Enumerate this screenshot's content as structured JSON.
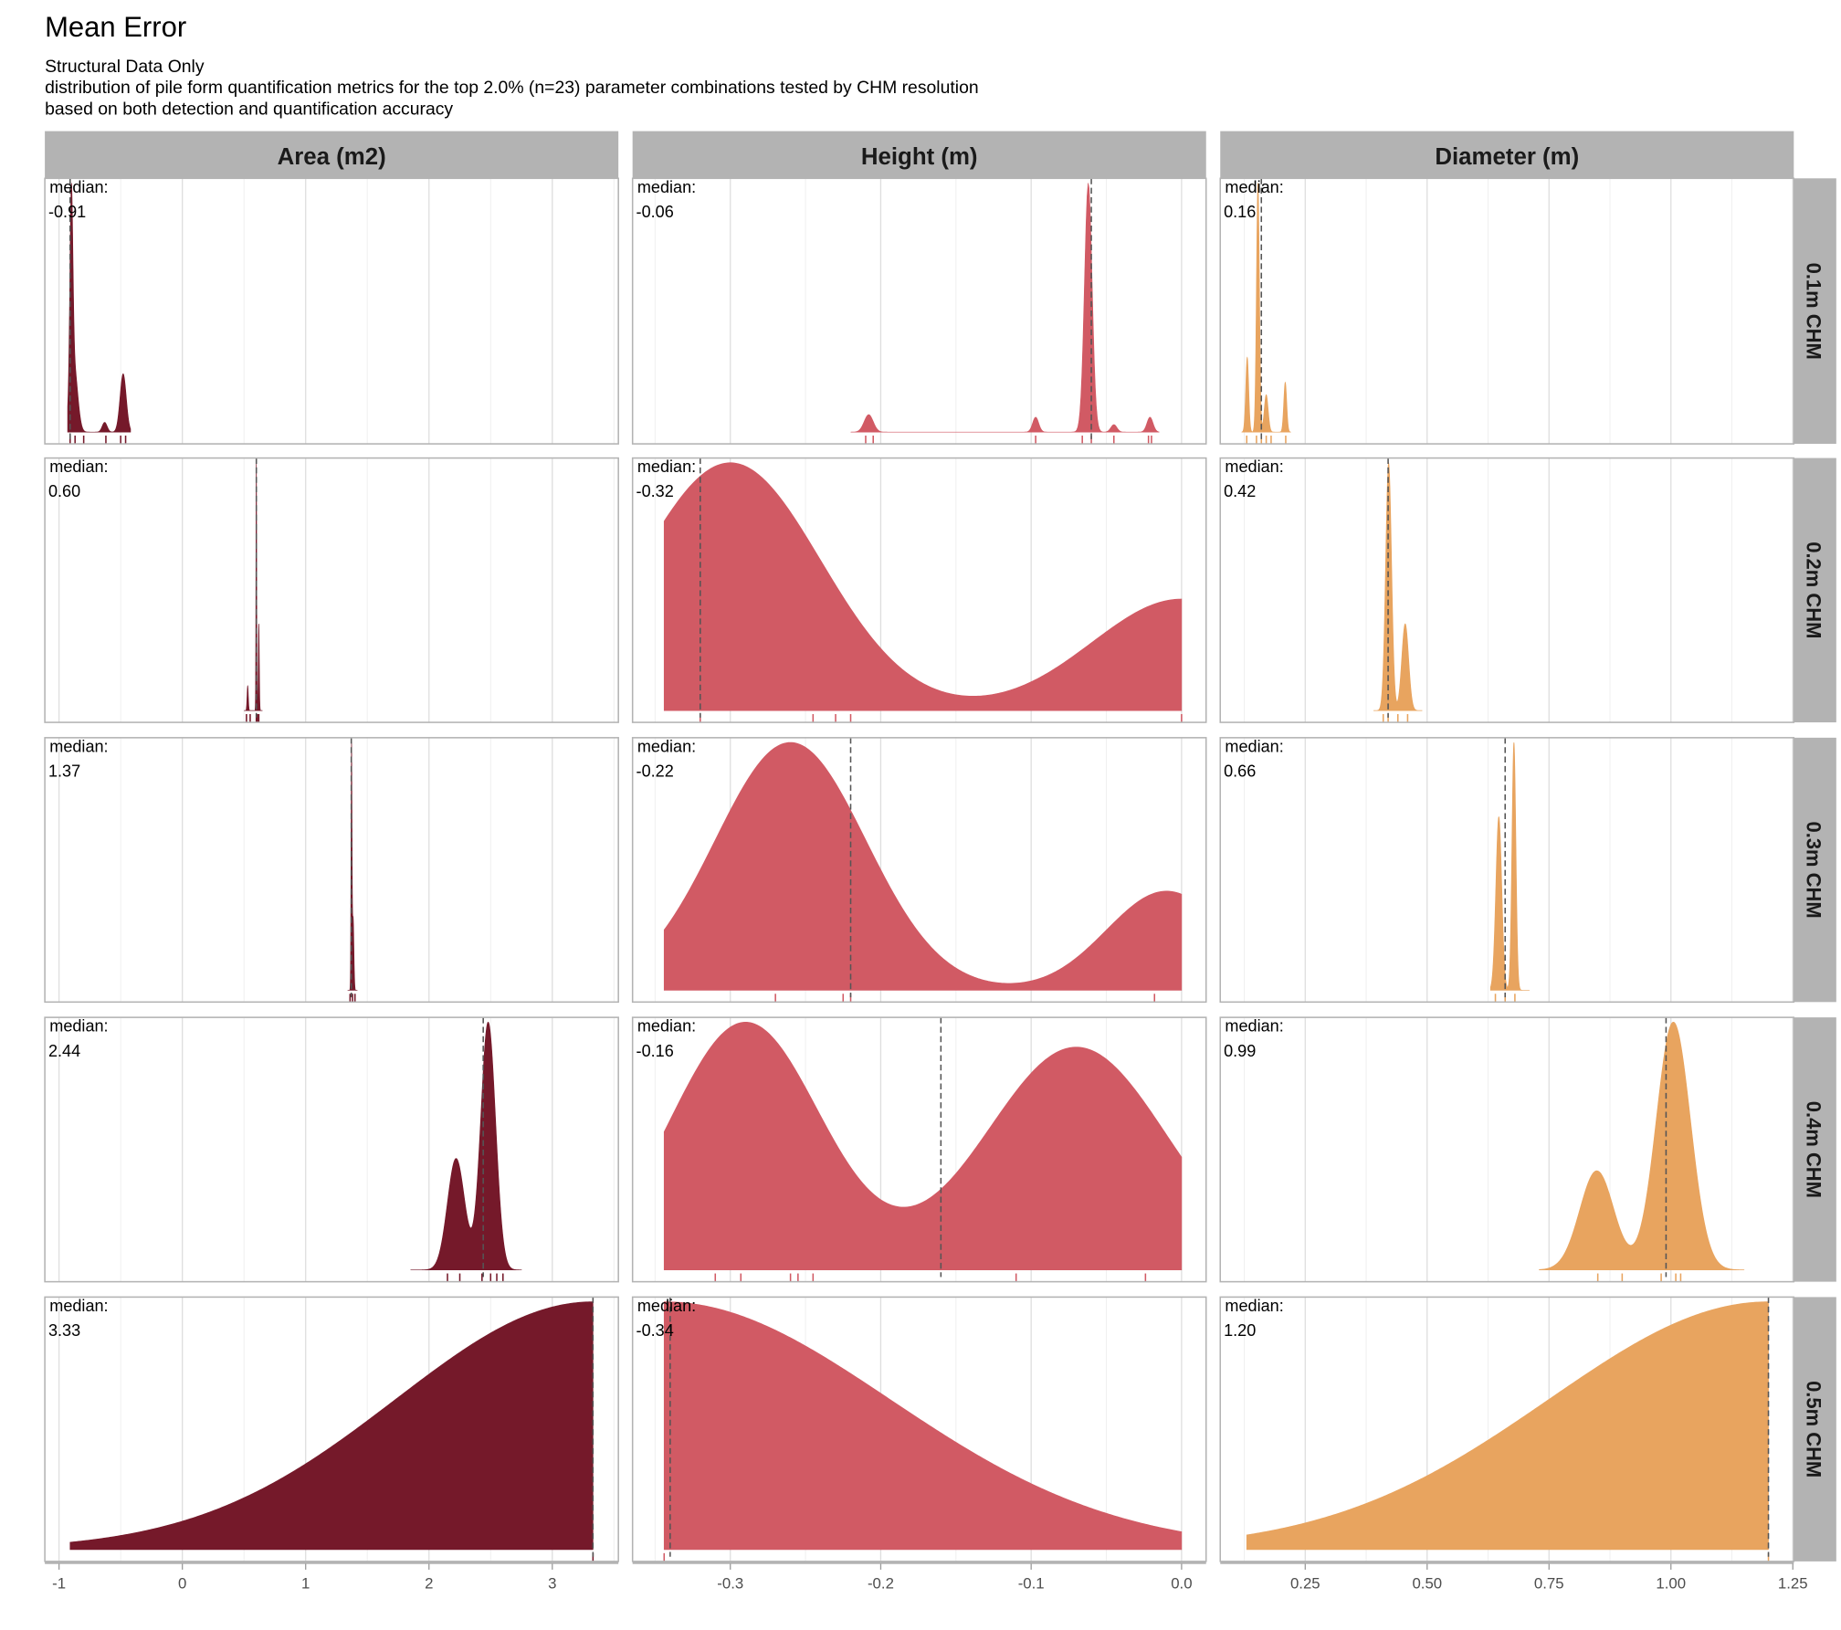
{
  "title": "Mean Error",
  "subtitle": [
    "Structural Data Only",
    "distribution of pile form quantification metrics for the top 2.0% (n=23) parameter combinations tested by CHM resolution",
    "based on both detection and quantification accuracy"
  ],
  "median_label": "median:",
  "chart_data": {
    "type": "density",
    "title": "Mean Error",
    "columns": [
      {
        "label": "Area (m2)",
        "color": "#75192a",
        "xlim": [
          -1.115,
          3.536
        ],
        "ticks": [
          -1,
          0,
          1,
          2,
          3
        ],
        "tick_labels": [
          "-1",
          "0",
          "1",
          "2",
          "3"
        ],
        "minor": [
          -0.5,
          0.5,
          1.5,
          2.5,
          3.5
        ]
      },
      {
        "label": "Height (m)",
        "color": "#d15a64",
        "xlim": [
          -0.365,
          0.0163
        ],
        "ticks": [
          -0.3,
          -0.2,
          -0.1,
          0.0
        ],
        "tick_labels": [
          "-0.3",
          "-0.2",
          "-0.1",
          "0.0"
        ],
        "minor": [
          -0.35,
          -0.25,
          -0.15,
          -0.05
        ]
      },
      {
        "label": "Diameter (m)",
        "color": "#e8a45f",
        "xlim": [
          0.0757,
          1.252
        ],
        "ticks": [
          0.25,
          0.5,
          0.75,
          1.0,
          1.25
        ],
        "tick_labels": [
          "0.25",
          "0.50",
          "0.75",
          "1.00",
          "1.25"
        ],
        "minor": [
          0.125,
          0.375,
          0.625,
          0.875,
          1.125
        ]
      }
    ],
    "rows": [
      {
        "label": "0.1m CHM",
        "panels": [
          {
            "median": -0.91,
            "median_text": "-0.91",
            "range": [
              -0.93,
              -0.42
            ],
            "components": [
              [
                -0.9,
                0.012,
                1
              ],
              [
                -0.88,
                0.03,
                0.35
              ],
              [
                -0.63,
                0.02,
                0.05
              ],
              [
                -0.48,
                0.025,
                0.3
              ]
            ],
            "rug": [
              -0.91,
              -0.87,
              -0.8,
              -0.62,
              -0.5,
              -0.46
            ]
          },
          {
            "median": -0.06,
            "median_text": "-0.06",
            "range": [
              -0.22,
              -0.015
            ],
            "components": [
              [
                -0.062,
                0.0025,
                1
              ],
              [
                -0.208,
                0.003,
                0.07
              ],
              [
                -0.097,
                0.002,
                0.06
              ],
              [
                -0.045,
                0.002,
                0.03
              ],
              [
                -0.021,
                0.002,
                0.06
              ]
            ],
            "rug": [
              -0.21,
              -0.205,
              -0.097,
              -0.066,
              -0.06,
              -0.045,
              -0.022,
              -0.02
            ]
          },
          {
            "median": 0.16,
            "median_text": "0.16",
            "range": [
              0.12,
              0.22
            ],
            "components": [
              [
                0.153,
                0.003,
                1
              ],
              [
                0.131,
                0.003,
                0.3
              ],
              [
                0.17,
                0.004,
                0.15
              ],
              [
                0.209,
                0.003,
                0.2
              ]
            ],
            "rug": [
              0.13,
              0.15,
              0.16,
              0.17,
              0.18,
              0.21
            ]
          }
        ]
      },
      {
        "label": "0.2m CHM",
        "panels": [
          {
            "median": 0.6,
            "median_text": "0.60",
            "range": [
              0.5,
              0.65
            ],
            "components": [
              [
                0.6,
                0.003,
                1
              ],
              [
                0.53,
                0.005,
                0.1
              ],
              [
                0.62,
                0.004,
                0.35
              ]
            ],
            "rug": [
              0.52,
              0.55,
              0.6,
              0.61,
              0.62
            ]
          },
          {
            "median": -0.32,
            "median_text": "-0.32",
            "range": [
              -0.344,
              0.0
            ],
            "components": [
              [
                -0.3,
                0.06,
                1
              ],
              [
                0.0,
                0.06,
                0.45
              ]
            ],
            "rug": [
              -0.32,
              -0.245,
              -0.23,
              -0.22,
              0.0
            ]
          },
          {
            "median": 0.42,
            "median_text": "0.42",
            "range": [
              0.39,
              0.49
            ],
            "components": [
              [
                0.421,
                0.006,
                1
              ],
              [
                0.455,
                0.007,
                0.35
              ]
            ],
            "rug": [
              0.41,
              0.42,
              0.44,
              0.46
            ]
          }
        ]
      },
      {
        "label": "0.3m CHM",
        "panels": [
          {
            "median": 1.37,
            "median_text": "1.37",
            "range": [
              1.34,
              1.42
            ],
            "components": [
              [
                1.372,
                0.004,
                1
              ],
              [
                1.385,
                0.006,
                0.3
              ]
            ],
            "rug": [
              1.36,
              1.38,
              1.4
            ]
          },
          {
            "median": -0.22,
            "median_text": "-0.22",
            "range": [
              -0.344,
              0.0
            ],
            "components": [
              [
                -0.26,
                0.05,
                1
              ],
              [
                -0.01,
                0.04,
                0.4
              ]
            ],
            "rug": [
              -0.27,
              -0.225,
              -0.22,
              -0.018
            ]
          },
          {
            "median": 0.66,
            "median_text": "0.66",
            "range": [
              0.63,
              0.71
            ],
            "components": [
              [
                0.647,
                0.006,
                0.7
              ],
              [
                0.678,
                0.004,
                1
              ]
            ],
            "rug": [
              0.64,
              0.66,
              0.68
            ]
          }
        ]
      },
      {
        "label": "0.4m CHM",
        "panels": [
          {
            "median": 2.44,
            "median_text": "2.44",
            "range": [
              1.85,
              2.75
            ],
            "components": [
              [
                2.22,
                0.07,
                0.45
              ],
              [
                2.48,
                0.06,
                1
              ]
            ],
            "rug": [
              2.15,
              2.25,
              2.43,
              2.5,
              2.55,
              2.6
            ]
          },
          {
            "median": -0.16,
            "median_text": "-0.16",
            "range": [
              -0.344,
              0.0
            ],
            "components": [
              [
                -0.29,
                0.05,
                1
              ],
              [
                -0.07,
                0.06,
                0.9
              ]
            ],
            "rug": [
              -0.31,
              -0.293,
              -0.26,
              -0.255,
              -0.245,
              -0.11,
              -0.024
            ]
          },
          {
            "median": 0.99,
            "median_text": "0.99",
            "range": [
              0.73,
              1.15
            ],
            "components": [
              [
                0.848,
                0.035,
                0.4
              ],
              [
                1.005,
                0.035,
                1
              ]
            ],
            "rug": [
              0.85,
              0.9,
              0.98,
              1.01,
              1.02
            ]
          }
        ]
      },
      {
        "label": "0.5m CHM",
        "panels": [
          {
            "median": 3.33,
            "median_text": "3.33",
            "range": [
              -0.91,
              3.33
            ],
            "components": [
              [
                3.33,
                1.6,
                1
              ]
            ],
            "rug": [
              3.33
            ]
          },
          {
            "median": -0.34,
            "median_text": "-0.34",
            "range": [
              -0.344,
              0.0
            ],
            "components": [
              [
                -0.344,
                0.15,
                1
              ]
            ],
            "rug": [
              -0.344
            ]
          },
          {
            "median": 1.2,
            "median_text": "1.20",
            "range": [
              0.13,
              1.2
            ],
            "components": [
              [
                1.2,
                0.45,
                1
              ]
            ],
            "rug": [
              1.2
            ]
          }
        ]
      }
    ]
  }
}
